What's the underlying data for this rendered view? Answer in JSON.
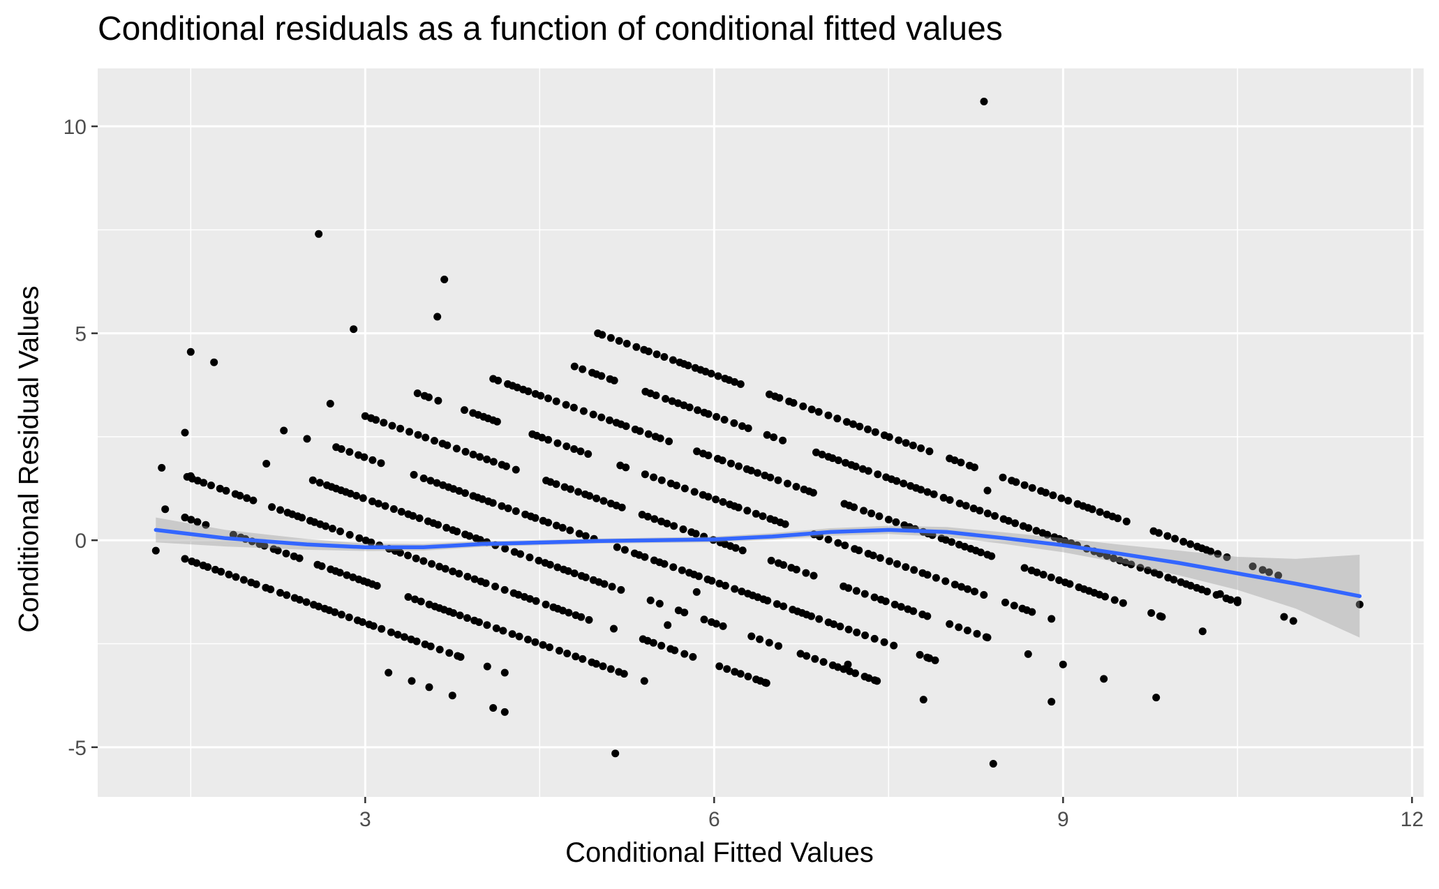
{
  "chart_data": {
    "type": "scatter",
    "title": "Conditional residuals as a function of conditional fitted values",
    "xlabel": "Conditional Fitted Values",
    "ylabel": "Conditional Residual Values",
    "xlim": [
      0.7,
      12.1
    ],
    "ylim": [
      -6.2,
      11.4
    ],
    "x_ticks": [
      3,
      6,
      9,
      12
    ],
    "x_tick_labels": [
      "3",
      "6",
      "9",
      "12"
    ],
    "y_ticks": [
      -5,
      0,
      5,
      10
    ],
    "y_tick_labels": [
      "-5",
      "0",
      "5",
      "10"
    ],
    "grid": true,
    "colors": {
      "panel": "#ebebeb",
      "grid": "#ffffff",
      "points": "#000000",
      "smooth": "#3366ff",
      "ribbon": "#c8c8c8"
    },
    "points_description": "Residual = observed integer count minus fitted value; points fall on parallel diagonal bands with slope -1, one band per observed count from 1 to 10, plus a few isolated points.",
    "bands": [
      {
        "observed": 1,
        "x_range": [
          1.45,
          3.82
        ]
      },
      {
        "observed": 2,
        "x_range": [
          1.45,
          5.4
        ]
      },
      {
        "observed": 3,
        "x_range": [
          1.25,
          6.45
        ]
      },
      {
        "observed": 4,
        "x_range": [
          2.55,
          7.4
        ]
      },
      {
        "observed": 5,
        "x_range": [
          2.75,
          7.85
        ]
      },
      {
        "observed": 6,
        "x_range": [
          3.0,
          8.35
        ]
      },
      {
        "observed": 7,
        "x_range": [
          3.45,
          8.9
        ]
      },
      {
        "observed": 8,
        "x_range": [
          4.1,
          9.85
        ]
      },
      {
        "observed": 9,
        "x_range": [
          4.8,
          10.5
        ]
      },
      {
        "observed": 10,
        "x_range": [
          5.0,
          10.85
        ]
      }
    ],
    "outliers": [
      {
        "x": 8.32,
        "y": 10.6
      },
      {
        "x": 2.6,
        "y": 7.4
      },
      {
        "x": 3.68,
        "y": 6.3
      },
      {
        "x": 3.62,
        "y": 5.4
      },
      {
        "x": 2.9,
        "y": 5.1
      },
      {
        "x": 1.5,
        "y": 4.55
      },
      {
        "x": 1.7,
        "y": 4.3
      },
      {
        "x": 3.05,
        "y": 2.95
      },
      {
        "x": 2.7,
        "y": 3.3
      },
      {
        "x": 1.45,
        "y": 2.6
      },
      {
        "x": 2.3,
        "y": 2.65
      },
      {
        "x": 2.5,
        "y": 2.45
      },
      {
        "x": 2.15,
        "y": 1.85
      },
      {
        "x": 1.2,
        "y": -0.25
      },
      {
        "x": 1.5,
        "y": 1.55
      },
      {
        "x": 1.45,
        "y": 0.55
      },
      {
        "x": 1.28,
        "y": 0.75
      },
      {
        "x": 5.85,
        "y": -1.25
      },
      {
        "x": 5.6,
        "y": -2.05
      },
      {
        "x": 5.15,
        "y": -5.15
      },
      {
        "x": 8.4,
        "y": -5.4
      },
      {
        "x": 8.35,
        "y": 1.2
      },
      {
        "x": 7.15,
        "y": -3.0
      },
      {
        "x": 8.9,
        "y": -3.9
      },
      {
        "x": 8.7,
        "y": -2.75
      },
      {
        "x": 9.0,
        "y": -3.0
      },
      {
        "x": 9.35,
        "y": -3.35
      },
      {
        "x": 9.8,
        "y": -3.8
      },
      {
        "x": 7.8,
        "y": -3.85
      },
      {
        "x": 7.9,
        "y": -2.9
      },
      {
        "x": 10.2,
        "y": -2.2
      },
      {
        "x": 10.35,
        "y": -1.3
      },
      {
        "x": 10.5,
        "y": -1.45
      },
      {
        "x": 10.9,
        "y": -1.85
      },
      {
        "x": 10.98,
        "y": -1.95
      },
      {
        "x": 11.55,
        "y": -1.55
      },
      {
        "x": 3.2,
        "y": -3.2
      },
      {
        "x": 3.75,
        "y": -3.75
      },
      {
        "x": 4.1,
        "y": -4.05
      },
      {
        "x": 4.2,
        "y": -4.15
      },
      {
        "x": 3.4,
        "y": -3.4
      },
      {
        "x": 3.55,
        "y": -3.55
      },
      {
        "x": 4.05,
        "y": -3.05
      },
      {
        "x": 4.2,
        "y": -3.2
      }
    ],
    "smooth": {
      "x": [
        1.2,
        1.8,
        2.5,
        3.0,
        3.5,
        4.0,
        5.0,
        6.0,
        6.5,
        7.0,
        7.5,
        8.0,
        8.5,
        9.0,
        9.5,
        10.0,
        10.5,
        11.0,
        11.55
      ],
      "y": [
        0.25,
        0.05,
        -0.1,
        -0.17,
        -0.17,
        -0.09,
        -0.02,
        0.02,
        0.09,
        0.2,
        0.25,
        0.2,
        0.05,
        -0.12,
        -0.33,
        -0.55,
        -0.8,
        -1.05,
        -1.35
      ],
      "ci_half_width": [
        0.3,
        0.2,
        0.13,
        0.09,
        0.08,
        0.07,
        0.06,
        0.07,
        0.08,
        0.09,
        0.1,
        0.12,
        0.14,
        0.17,
        0.22,
        0.3,
        0.4,
        0.6,
        1.0
      ]
    }
  }
}
